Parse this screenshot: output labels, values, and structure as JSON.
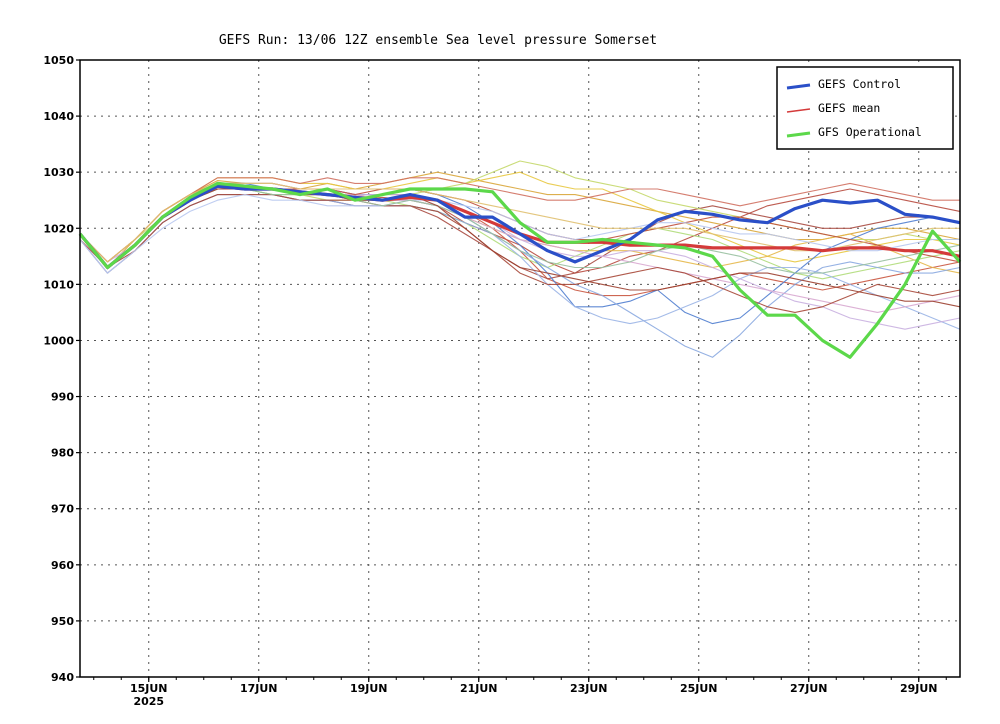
{
  "chart_data": {
    "type": "line",
    "title": "GEFS Run: 13/06 12Z ensemble Sea level pressure Somerset",
    "ylim": [
      940,
      1050
    ],
    "yticks": [
      940,
      950,
      960,
      970,
      980,
      990,
      1000,
      1010,
      1020,
      1030,
      1040,
      1050
    ],
    "xlim": [
      "2025-06-13 18:00",
      "2025-06-29 18:00"
    ],
    "xticks": [
      {
        "date": "2025-06-15",
        "label": "15JUN",
        "sublabel": "2025"
      },
      {
        "date": "2025-06-17",
        "label": "17JUN",
        "sublabel": ""
      },
      {
        "date": "2025-06-19",
        "label": "19JUN",
        "sublabel": ""
      },
      {
        "date": "2025-06-21",
        "label": "21JUN",
        "sublabel": ""
      },
      {
        "date": "2025-06-23",
        "label": "23JUN",
        "sublabel": ""
      },
      {
        "date": "2025-06-25",
        "label": "25JUN",
        "sublabel": ""
      },
      {
        "date": "2025-06-27",
        "label": "27JUN",
        "sublabel": ""
      },
      {
        "date": "2025-06-29",
        "label": "29JUN",
        "sublabel": ""
      }
    ],
    "grid": true,
    "legend_position": "top-right",
    "x_dates": [
      "2025-06-13 18:00",
      "2025-06-14 06:00",
      "2025-06-14 18:00",
      "2025-06-15 06:00",
      "2025-06-15 18:00",
      "2025-06-16 06:00",
      "2025-06-16 18:00",
      "2025-06-17 06:00",
      "2025-06-17 18:00",
      "2025-06-18 06:00",
      "2025-06-18 18:00",
      "2025-06-19 06:00",
      "2025-06-19 18:00",
      "2025-06-20 06:00",
      "2025-06-20 18:00",
      "2025-06-21 06:00",
      "2025-06-21 18:00",
      "2025-06-22 06:00",
      "2025-06-22 18:00",
      "2025-06-23 06:00",
      "2025-06-23 18:00",
      "2025-06-24 06:00",
      "2025-06-24 18:00",
      "2025-06-25 06:00",
      "2025-06-25 18:00",
      "2025-06-26 06:00",
      "2025-06-26 18:00",
      "2025-06-27 06:00",
      "2025-06-27 18:00",
      "2025-06-28 06:00",
      "2025-06-28 18:00",
      "2025-06-29 06:00",
      "2025-06-29 18:00"
    ],
    "series": [
      {
        "name": "GEFS Control",
        "color": "#2a4fc8",
        "width": 3.2,
        "values": [
          1019,
          1013,
          1017,
          1022,
          1025,
          1027.5,
          1027,
          1027,
          1026.5,
          1026,
          1025.5,
          1025,
          1026,
          1025,
          1022,
          1022,
          1019,
          1016,
          1014,
          1016,
          1018,
          1021.5,
          1023,
          1022.5,
          1021.5,
          1021,
          1023.5,
          1025,
          1024.5,
          1025,
          1022.5,
          1022,
          1021
        ]
      },
      {
        "name": "GEFS mean",
        "color": "#d43a3a",
        "width": 3.2,
        "values": [
          1019,
          1013,
          1017,
          1022,
          1025,
          1027.5,
          1027,
          1027,
          1026.5,
          1026,
          1025.5,
          1025,
          1025.5,
          1025,
          1023,
          1021,
          1019,
          1017.5,
          1017.5,
          1017.5,
          1017,
          1017,
          1017,
          1016.5,
          1016.5,
          1016.5,
          1016.5,
          1016,
          1016.5,
          1016.5,
          1016,
          1016,
          1015
        ]
      },
      {
        "name": "GFS Operational",
        "color": "#5cd84a",
        "width": 3.2,
        "values": [
          1019,
          1013,
          1017,
          1022,
          1025.5,
          1028,
          1027.5,
          1027,
          1026,
          1027,
          1025,
          1026,
          1027,
          1027,
          1027,
          1026.5,
          1021,
          1017.5,
          1017.5,
          1018,
          1017.5,
          1017,
          1016.5,
          1015,
          1009,
          1004.5,
          1004.5,
          1000,
          997,
          1003,
          1010,
          1019.5,
          1014
        ]
      }
    ],
    "members": [
      {
        "color": "#b74a3e",
        "values": [
          1019,
          1013,
          1017,
          1022,
          1025,
          1027,
          1027,
          1027,
          1026,
          1026,
          1025,
          1025.5,
          1025,
          1024,
          1021,
          1019,
          1017,
          1014,
          1012,
          1013,
          1015,
          1016,
          1018,
          1020,
          1022,
          1024,
          1025,
          1026,
          1027,
          1026,
          1025,
          1024,
          1023
        ]
      },
      {
        "color": "#c9553f",
        "values": [
          1019,
          1014,
          1018,
          1023,
          1026,
          1028,
          1028,
          1028,
          1027,
          1027,
          1026,
          1026,
          1026,
          1025,
          1023,
          1020,
          1016,
          1011,
          1009,
          1008,
          1008,
          1009,
          1010,
          1011,
          1012,
          1011,
          1010,
          1009,
          1010,
          1011,
          1012,
          1013,
          1014
        ]
      },
      {
        "color": "#a94a40",
        "values": [
          1018,
          1012,
          1016,
          1021,
          1024,
          1026,
          1026,
          1026,
          1025,
          1025,
          1024,
          1024,
          1024,
          1022,
          1019,
          1016,
          1013,
          1011,
          1012,
          1015,
          1018,
          1021,
          1023,
          1024,
          1023,
          1022,
          1021,
          1020,
          1020,
          1021,
          1022,
          1022,
          1021
        ]
      },
      {
        "color": "#d9a63a",
        "values": [
          1019,
          1013,
          1018,
          1023,
          1026,
          1028.5,
          1028,
          1028,
          1027,
          1028,
          1027,
          1028,
          1029,
          1030,
          1029,
          1028,
          1027,
          1026,
          1026,
          1025,
          1024,
          1023,
          1022,
          1021,
          1020,
          1019,
          1018,
          1018,
          1019,
          1020,
          1020,
          1019,
          1018
        ]
      },
      {
        "color": "#e8c840",
        "values": [
          1019,
          1014,
          1018,
          1023,
          1026,
          1029,
          1029,
          1029,
          1028,
          1028,
          1027,
          1027,
          1028,
          1029,
          1028,
          1029,
          1030,
          1028,
          1027,
          1027,
          1025,
          1023,
          1021,
          1019,
          1017,
          1015,
          1014,
          1015,
          1016,
          1017,
          1018,
          1018,
          1017
        ]
      },
      {
        "color": "#e6b84a",
        "values": [
          1019,
          1013,
          1017,
          1022,
          1025,
          1027,
          1027,
          1027,
          1026,
          1026,
          1026,
          1025,
          1025,
          1024,
          1022,
          1020,
          1018,
          1017,
          1016,
          1016,
          1016,
          1015,
          1014,
          1013,
          1014,
          1015,
          1017,
          1018,
          1019,
          1017,
          1015,
          1013,
          1012
        ]
      },
      {
        "color": "#c4d86a",
        "values": [
          1019,
          1014,
          1018,
          1022,
          1025,
          1027,
          1027,
          1026,
          1026,
          1025,
          1025,
          1025,
          1026,
          1027,
          1028,
          1030,
          1032,
          1031,
          1029,
          1028,
          1027,
          1025,
          1024,
          1023,
          1022,
          1021,
          1020,
          1019,
          1018,
          1018,
          1019,
          1018,
          1018
        ]
      },
      {
        "color": "#b0dc7a",
        "values": [
          1019,
          1013,
          1017,
          1022,
          1025,
          1028,
          1027,
          1026,
          1026,
          1026,
          1025,
          1025,
          1024,
          1023,
          1021,
          1018,
          1015,
          1013,
          1015,
          1017,
          1019,
          1020,
          1019,
          1018,
          1016,
          1014,
          1012,
          1011,
          1012,
          1013,
          1014,
          1015,
          1016
        ]
      },
      {
        "color": "#4f7dcf",
        "values": [
          1019,
          1013,
          1017,
          1022,
          1025,
          1028,
          1028,
          1027,
          1026,
          1027,
          1026,
          1026,
          1027,
          1026,
          1024,
          1021,
          1017,
          1012,
          1006,
          1006,
          1007,
          1009,
          1005,
          1003,
          1004,
          1008,
          1012,
          1016,
          1018,
          1020,
          1021,
          1022,
          1021
        ]
      },
      {
        "color": "#8aa8e0",
        "values": [
          1018,
          1012,
          1016,
          1021,
          1024,
          1026,
          1026,
          1026,
          1025,
          1025,
          1024,
          1024,
          1024,
          1023,
          1021,
          1019,
          1016,
          1013,
          1010,
          1008,
          1005,
          1002,
          999,
          997,
          1001,
          1006,
          1010,
          1013,
          1014,
          1013,
          1012,
          1012,
          1013
        ]
      },
      {
        "color": "#9ab4e6",
        "values": [
          1019,
          1013,
          1017,
          1022,
          1025,
          1027,
          1027,
          1027,
          1026,
          1026,
          1025,
          1025,
          1025,
          1024,
          1022,
          1019,
          1015,
          1010,
          1006,
          1004,
          1003,
          1004,
          1006,
          1008,
          1011,
          1013,
          1013,
          1012,
          1010,
          1008,
          1006,
          1004,
          1002
        ]
      },
      {
        "color": "#c9b0e0",
        "values": [
          1019,
          1014,
          1017,
          1022,
          1025,
          1027,
          1028,
          1028,
          1027,
          1027,
          1026,
          1026,
          1026,
          1025,
          1023,
          1021,
          1018,
          1016,
          1015,
          1015,
          1016,
          1016,
          1015,
          1013,
          1011,
          1009,
          1007,
          1006,
          1004,
          1003,
          1002,
          1003,
          1004
        ]
      },
      {
        "color": "#d8a8d0",
        "values": [
          1019,
          1013,
          1017,
          1022,
          1025,
          1028,
          1027,
          1027,
          1026,
          1026,
          1026,
          1025,
          1025,
          1024,
          1022,
          1020,
          1018,
          1017,
          1016,
          1015,
          1014,
          1013,
          1012,
          1011,
          1010,
          1009,
          1008,
          1007,
          1006,
          1005,
          1006,
          1007,
          1008
        ]
      },
      {
        "color": "#a74838",
        "values": [
          1018,
          1013,
          1016,
          1021,
          1024,
          1026,
          1026,
          1026,
          1025,
          1025,
          1025,
          1024,
          1024,
          1023,
          1020,
          1016,
          1012,
          1010,
          1010,
          1011,
          1012,
          1013,
          1012,
          1010,
          1008,
          1006,
          1005,
          1006,
          1008,
          1010,
          1009,
          1008,
          1009
        ]
      },
      {
        "color": "#c0503c",
        "values": [
          1019,
          1013,
          1017,
          1022,
          1025,
          1027,
          1027,
          1027,
          1027,
          1027,
          1026,
          1027,
          1027,
          1026,
          1025,
          1023,
          1021,
          1019,
          1018,
          1018,
          1019,
          1020,
          1021,
          1022,
          1022,
          1021,
          1020,
          1019,
          1018,
          1017,
          1016,
          1015,
          1014
        ]
      },
      {
        "color": "#d07060",
        "values": [
          1019,
          1014,
          1018,
          1023,
          1026,
          1029,
          1029,
          1029,
          1028,
          1029,
          1028,
          1028,
          1029,
          1029,
          1028,
          1027,
          1026,
          1025,
          1025,
          1026,
          1027,
          1027,
          1026,
          1025,
          1024,
          1025,
          1026,
          1027,
          1028,
          1027,
          1026,
          1025,
          1025
        ]
      },
      {
        "color": "#b8c8f0",
        "values": [
          1018,
          1012,
          1016,
          1020,
          1023,
          1025,
          1026,
          1025,
          1025,
          1024,
          1024,
          1024,
          1025,
          1025,
          1024,
          1023,
          1021,
          1019,
          1018,
          1019,
          1020,
          1021,
          1021,
          1020,
          1019,
          1019,
          1018,
          1017,
          1016,
          1016,
          1017,
          1018,
          1018
        ]
      },
      {
        "color": "#98c0a0",
        "values": [
          1019,
          1013,
          1017,
          1022,
          1025,
          1027,
          1027,
          1026,
          1026,
          1026,
          1025,
          1024,
          1025,
          1024,
          1022,
          1019,
          1016,
          1014,
          1013,
          1013,
          1014,
          1016,
          1017,
          1016,
          1015,
          1013,
          1012,
          1012,
          1013,
          1014,
          1015,
          1016,
          1017
        ]
      },
      {
        "color": "#9c4030",
        "values": [
          1019,
          1013,
          1017,
          1022,
          1025,
          1027,
          1027,
          1027,
          1026,
          1026,
          1025,
          1025,
          1026,
          1024,
          1020,
          1016,
          1013,
          1012,
          1011,
          1010,
          1009,
          1009,
          1010,
          1011,
          1012,
          1012,
          1011,
          1010,
          1009,
          1008,
          1007,
          1007,
          1006
        ]
      },
      {
        "color": "#e0c070",
        "values": [
          1019,
          1014,
          1018,
          1023,
          1026,
          1028,
          1028,
          1028,
          1027,
          1027,
          1027,
          1027,
          1027,
          1026,
          1025,
          1024,
          1023,
          1022,
          1021,
          1020,
          1020,
          1020,
          1020,
          1019,
          1018,
          1017,
          1016,
          1016,
          1017,
          1018,
          1019,
          1020,
          1020
        ]
      }
    ]
  }
}
